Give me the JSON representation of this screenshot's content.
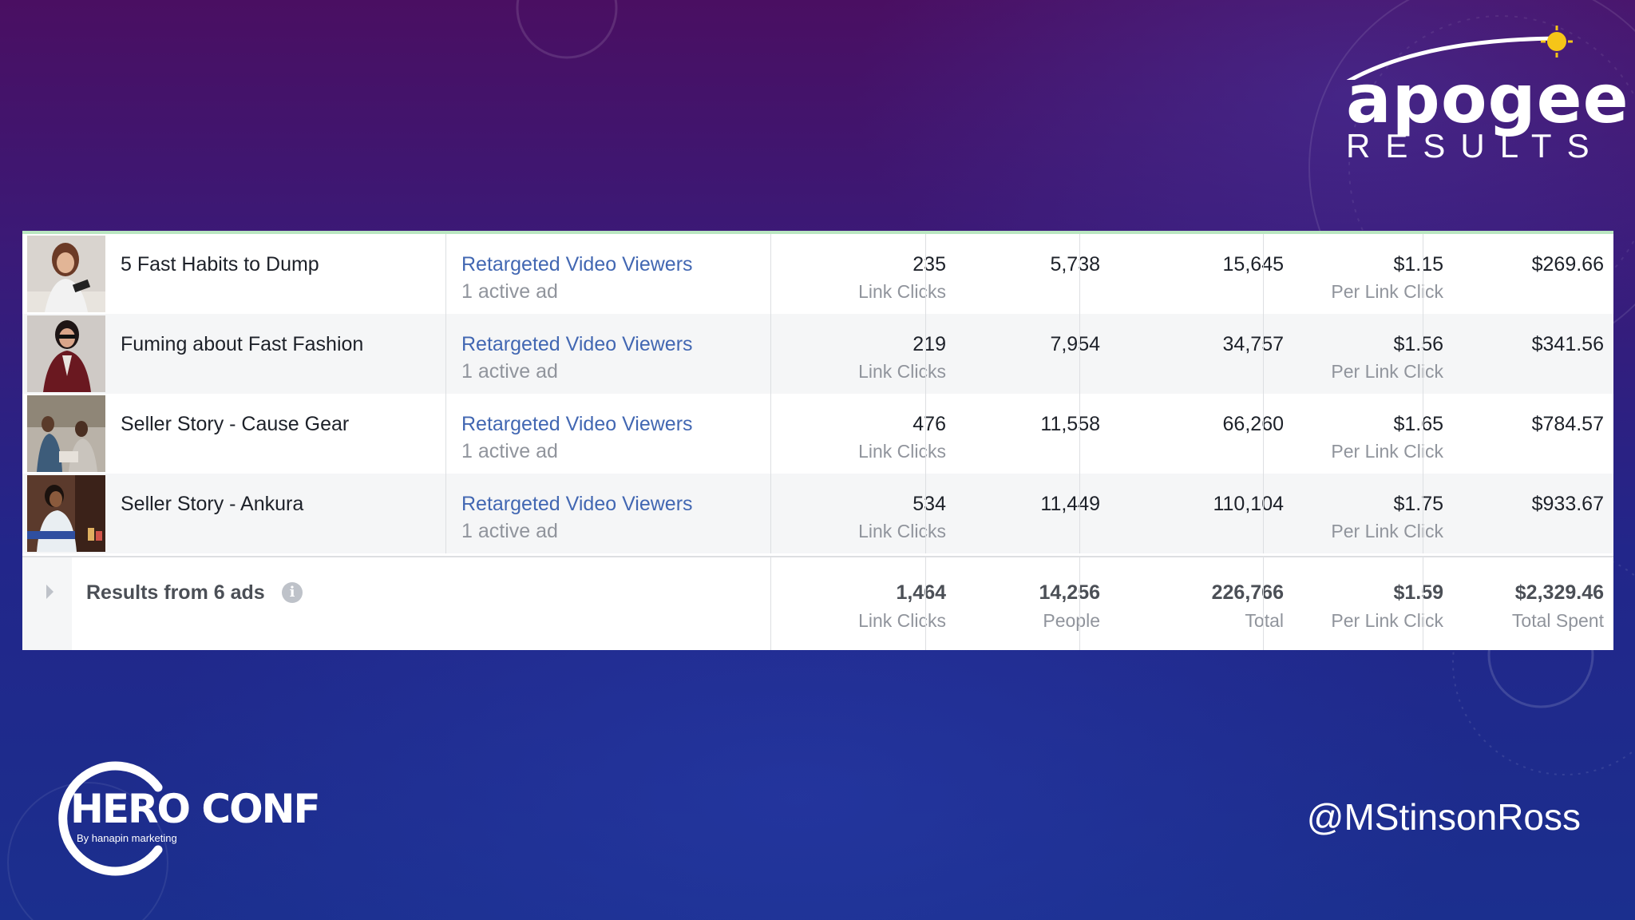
{
  "branding": {
    "company_name": "apogee",
    "company_sub": "RESULTS",
    "conference_name": "HERO CONF",
    "conference_by": "By hanapin marketing",
    "twitter_handle": "@MStinsonRoss"
  },
  "ads": [
    {
      "name": "5 Fast Habits to Dump",
      "audience": "Retargeted Video Viewers",
      "audience_status": "1 active ad",
      "results": "235",
      "results_label": "Link Clicks",
      "reach": "5,738",
      "impressions": "15,645",
      "cost": "$1.15",
      "cost_label": "Per Link Click",
      "spent": "$269.66"
    },
    {
      "name": "Fuming about Fast Fashion",
      "audience": "Retargeted Video Viewers",
      "audience_status": "1 active ad",
      "results": "219",
      "results_label": "Link Clicks",
      "reach": "7,954",
      "impressions": "34,757",
      "cost": "$1.56",
      "cost_label": "Per Link Click",
      "spent": "$341.56"
    },
    {
      "name": "Seller Story - Cause Gear",
      "audience": "Retargeted Video Viewers",
      "audience_status": "1 active ad",
      "results": "476",
      "results_label": "Link Clicks",
      "reach": "11,558",
      "impressions": "66,260",
      "cost": "$1.65",
      "cost_label": "Per Link Click",
      "spent": "$784.57"
    },
    {
      "name": "Seller Story - Ankura",
      "audience": "Retargeted Video Viewers",
      "audience_status": "1 active ad",
      "results": "534",
      "results_label": "Link Clicks",
      "reach": "11,449",
      "impressions": "110,104",
      "cost": "$1.75",
      "cost_label": "Per Link Click",
      "spent": "$933.67"
    }
  ],
  "summary": {
    "label": "Results from 6 ads",
    "info_icon": "i",
    "results": "1,464",
    "results_label": "Link Clicks",
    "reach": "14,256",
    "reach_label": "People",
    "impressions": "226,766",
    "impressions_label": "Total",
    "cost": "$1.59",
    "cost_label": "Per Link Click",
    "spent": "$2,329.46",
    "spent_label": "Total Spent"
  },
  "colors": {
    "link_blue": "#4267b2",
    "muted_gray": "#90949c",
    "header_accent": "#b9e6c0"
  }
}
